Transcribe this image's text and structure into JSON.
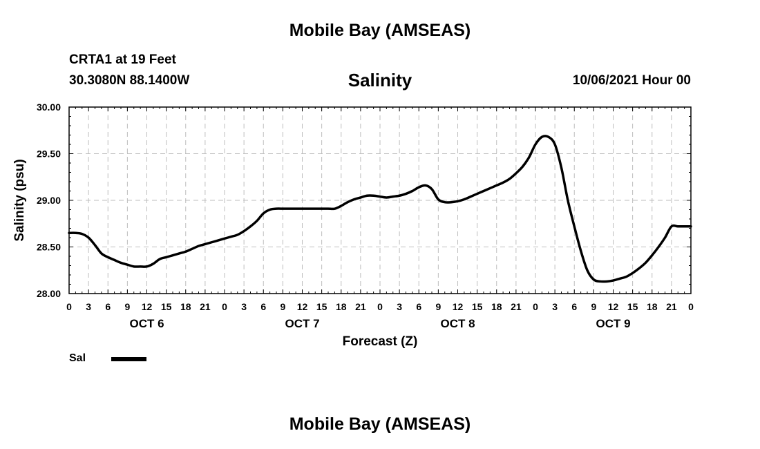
{
  "header": {
    "title": "Mobile Bay (AMSEAS)",
    "station": "CRTA1 at 19 Feet",
    "coords": "30.3080N  88.1400W",
    "variable": "Salinity",
    "datetime": "10/06/2021 Hour 00"
  },
  "footer": {
    "title": "Mobile Bay (AMSEAS)"
  },
  "legend": {
    "label": "Sal",
    "color": "#000000"
  },
  "chart_data": {
    "type": "line",
    "title": "Salinity",
    "xlabel": "Forecast (Z)",
    "ylabel": "Salinity (psu)",
    "xlim": [
      0,
      96
    ],
    "ylim": [
      28.0,
      30.0
    ],
    "yticks": [
      "28.00",
      "28.50",
      "29.00",
      "29.50",
      "30.00"
    ],
    "xtick_labels": [
      "0",
      "3",
      "6",
      "9",
      "12",
      "15",
      "18",
      "21",
      "0",
      "3",
      "6",
      "9",
      "12",
      "15",
      "18",
      "21",
      "0",
      "3",
      "6",
      "9",
      "12",
      "15",
      "18",
      "21",
      "0",
      "3",
      "6",
      "9",
      "12",
      "15",
      "18",
      "21",
      "0"
    ],
    "day_labels": [
      {
        "hour": 12,
        "label": "OCT 6"
      },
      {
        "hour": 36,
        "label": "OCT 7"
      },
      {
        "hour": 60,
        "label": "OCT 8"
      },
      {
        "hour": 84,
        "label": "OCT 9"
      }
    ],
    "grid": true,
    "legend_position": "bottom-left",
    "series": [
      {
        "name": "Sal",
        "color": "#000000",
        "x": [
          0,
          1,
          2,
          3,
          4,
          5,
          6,
          7,
          8,
          9,
          10,
          11,
          12,
          13,
          14,
          15,
          16,
          17,
          18,
          19,
          20,
          21,
          22,
          23,
          24,
          25,
          26,
          27,
          28,
          29,
          30,
          31,
          32,
          33,
          34,
          35,
          36,
          37,
          38,
          39,
          40,
          41,
          42,
          43,
          44,
          45,
          46,
          47,
          48,
          49,
          50,
          51,
          52,
          53,
          54,
          55,
          56,
          57,
          58,
          59,
          60,
          61,
          62,
          63,
          64,
          65,
          66,
          67,
          68,
          69,
          70,
          71,
          72,
          73,
          74,
          75,
          76,
          77,
          78,
          79,
          80,
          81,
          82,
          83,
          84,
          85,
          86,
          87,
          88,
          89,
          90,
          91,
          92,
          93,
          94,
          95,
          96
        ],
        "y": [
          28.65,
          28.65,
          28.64,
          28.6,
          28.52,
          28.43,
          28.39,
          28.36,
          28.33,
          28.31,
          28.29,
          28.29,
          28.29,
          28.32,
          28.37,
          28.39,
          28.41,
          28.43,
          28.45,
          28.48,
          28.51,
          28.53,
          28.55,
          28.57,
          28.59,
          28.61,
          28.63,
          28.67,
          28.72,
          28.78,
          28.86,
          28.9,
          28.91,
          28.91,
          28.91,
          28.91,
          28.91,
          28.91,
          28.91,
          28.91,
          28.91,
          28.91,
          28.94,
          28.98,
          29.01,
          29.03,
          29.05,
          29.05,
          29.04,
          29.03,
          29.04,
          29.05,
          29.07,
          29.1,
          29.14,
          29.16,
          29.12,
          29.01,
          28.98,
          28.98,
          28.99,
          29.01,
          29.04,
          29.07,
          29.1,
          29.13,
          29.16,
          29.19,
          29.23,
          29.29,
          29.36,
          29.46,
          29.6,
          29.68,
          29.68,
          29.6,
          29.35,
          29.0,
          28.72,
          28.46,
          28.25,
          28.15,
          28.13,
          28.13,
          28.14,
          28.16,
          28.18,
          28.22,
          28.27,
          28.33,
          28.41,
          28.5,
          28.6,
          28.72,
          28.72,
          28.72,
          28.72
        ]
      }
    ]
  }
}
